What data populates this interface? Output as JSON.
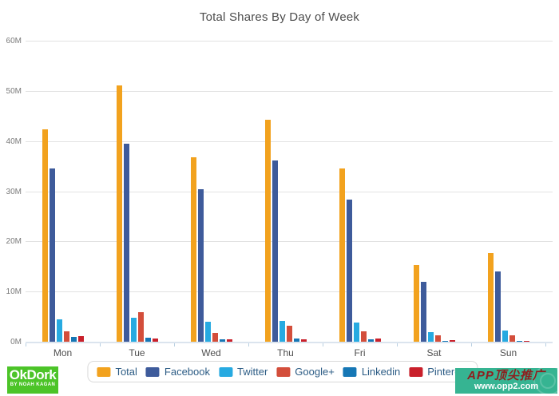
{
  "title": "Total Shares By Day of Week",
  "chart_data": {
    "type": "bar",
    "title": "Total Shares By Day of Week",
    "xlabel": "",
    "ylabel": "",
    "unit": "M shares",
    "ylim": [
      0,
      60
    ],
    "grid": true,
    "legend_position": "bottom",
    "y_ticks": [
      "60M",
      "50M",
      "40M",
      "30M",
      "20M",
      "10M",
      "0M"
    ],
    "categories": [
      "Mon",
      "Tue",
      "Wed",
      "Thu",
      "Fri",
      "Sat",
      "Sun"
    ],
    "series": [
      {
        "name": "Total",
        "color": "#F2A21E",
        "values": [
          42.3,
          51.1,
          36.8,
          44.3,
          34.6,
          15.3,
          17.7
        ]
      },
      {
        "name": "Facebook",
        "color": "#3E5B9B",
        "values": [
          34.5,
          39.5,
          30.4,
          36.1,
          28.4,
          11.9,
          14.0
        ]
      },
      {
        "name": "Twitter",
        "color": "#27AAE1",
        "values": [
          4.4,
          4.8,
          4.0,
          4.1,
          3.9,
          1.9,
          2.3
        ]
      },
      {
        "name": "Google+",
        "color": "#D34E3B",
        "values": [
          2.0,
          5.9,
          1.7,
          3.2,
          2.0,
          1.3,
          1.3
        ]
      },
      {
        "name": "Linkedin",
        "color": "#1677B5",
        "values": [
          0.9,
          0.8,
          0.5,
          0.6,
          0.5,
          0.1,
          0.1
        ]
      },
      {
        "name": "Pinterest",
        "color": "#C9202B",
        "values": [
          1.1,
          0.7,
          0.5,
          0.5,
          0.6,
          0.3,
          0.2
        ]
      }
    ]
  },
  "branding": {
    "okdork_line1": "OkDork",
    "okdork_line2": "BY NOAH KAGAN",
    "watermark_line1": "APP顶尖推广",
    "watermark_line2": "www.opp2.com",
    "okdork_bg": "#4cc428",
    "watermark_bg": "#36b492"
  }
}
